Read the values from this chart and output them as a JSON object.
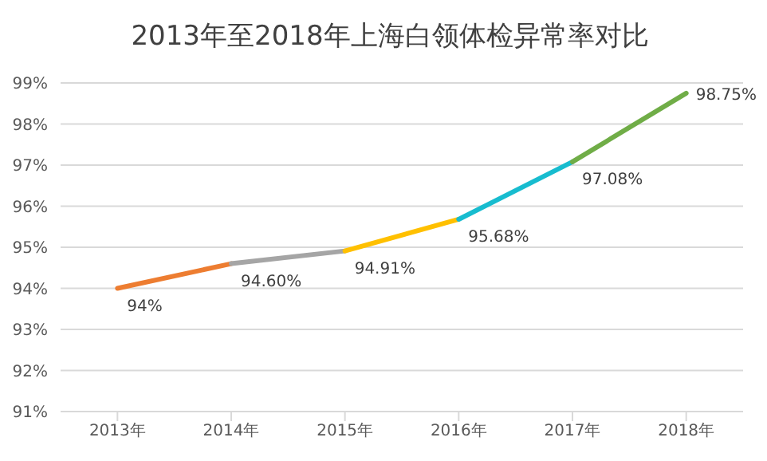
{
  "chart_data": {
    "type": "line",
    "title": "2013年至2018年上海白领体检异常率对比",
    "categories": [
      "2013年",
      "2014年",
      "2015年",
      "2016年",
      "2017年",
      "2018年"
    ],
    "series": [
      {
        "color": "#ed7d31",
        "values": [
          94,
          94.6,
          null,
          null,
          null,
          null
        ],
        "value_labels": [
          "94%",
          "94.60%",
          null,
          null,
          null,
          null
        ]
      },
      {
        "color": "#a5a5a5",
        "values": [
          null,
          94.6,
          94.91,
          null,
          null,
          null
        ],
        "value_labels": [
          null,
          null,
          "94.91%",
          null,
          null,
          null
        ]
      },
      {
        "color": "#ffc000",
        "values": [
          null,
          null,
          94.91,
          95.68,
          null,
          null
        ],
        "value_labels": [
          null,
          null,
          null,
          "95.68%",
          null,
          null
        ]
      },
      {
        "color": "#17bccf",
        "values": [
          null,
          null,
          null,
          95.68,
          97.08,
          null
        ],
        "value_labels": [
          null,
          null,
          null,
          null,
          "97.08%",
          null
        ]
      },
      {
        "color": "#70ad47",
        "values": [
          null,
          null,
          null,
          null,
          97.08,
          98.75
        ],
        "value_labels": [
          null,
          null,
          null,
          null,
          null,
          "98.75%"
        ]
      }
    ],
    "ylim": [
      91,
      99
    ],
    "yticks": [
      {
        "value": 91,
        "label": "91%"
      },
      {
        "value": 92,
        "label": "92%"
      },
      {
        "value": 93,
        "label": "93%"
      },
      {
        "value": 94,
        "label": "94%"
      },
      {
        "value": 95,
        "label": "95%"
      },
      {
        "value": 96,
        "label": "96%"
      },
      {
        "value": 97,
        "label": "97%"
      },
      {
        "value": 98,
        "label": "98%"
      },
      {
        "value": 99,
        "label": "99%"
      }
    ],
    "grid": "y",
    "marker": "none",
    "line_style": "solid"
  }
}
